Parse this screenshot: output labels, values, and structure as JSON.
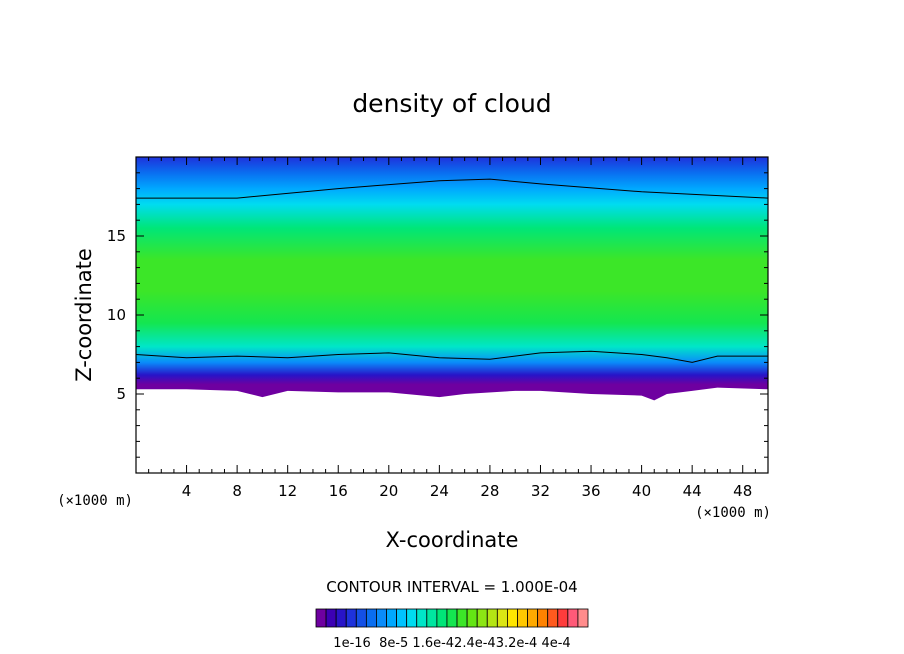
{
  "chart_data": {
    "type": "heatmap",
    "title": "density of cloud",
    "xlabel": "X-coordinate",
    "ylabel": "Z-coordinate",
    "x_unit": "(×1000 m)",
    "xlim": [
      0,
      50
    ],
    "ylim": [
      0,
      20
    ],
    "x_ticks": [
      4,
      8,
      12,
      16,
      20,
      24,
      28,
      32,
      36,
      40,
      44,
      48
    ],
    "y_ticks": [
      5,
      10,
      15
    ],
    "grid": false,
    "contour_interval_text": "CONTOUR INTERVAL = 1.000E-04",
    "colorbar": {
      "tick_labels": [
        "1e-16",
        "8e-5",
        "1.6e-4",
        "2.4e-4",
        "3.2e-4",
        "4e-4"
      ],
      "tick_text": "1e-16  8e-5 1.6e-42.4e-43.2e-4 4e-4",
      "min": 0,
      "max": 0.0004,
      "colors": [
        "#6e00a0",
        "#3c00b4",
        "#2814c8",
        "#1e32dc",
        "#1450e6",
        "#0a6ef0",
        "#0a8cfa",
        "#00a8ff",
        "#00c3ff",
        "#00dcf0",
        "#00e6c8",
        "#00e6a0",
        "#00e678",
        "#14e650",
        "#3ce628",
        "#64e614",
        "#8ce614",
        "#b4e614",
        "#dce614",
        "#ffe600",
        "#ffc800",
        "#ffaa00",
        "#ff8200",
        "#ff5a1e",
        "#ff3c3c",
        "#ff5a78",
        "#ff8c8c"
      ]
    },
    "cloud_profile": {
      "z": [
        5.6,
        6.2,
        7.0,
        8.0,
        9.5,
        11.5,
        13.5,
        15.5,
        17.0,
        18.0,
        19.0,
        20.0
      ],
      "density": [
        0.0,
        4e-05,
        0.0001,
        0.00015,
        0.0002,
        0.00022,
        0.00021,
        0.00018,
        0.00014,
        0.00011,
        8e-05,
        5e-05
      ]
    },
    "contour_lines": [
      {
        "name": "upper",
        "x": [
          0,
          8,
          16,
          24,
          28,
          32,
          40,
          50
        ],
        "z": [
          17.4,
          17.4,
          18.0,
          18.5,
          18.6,
          18.3,
          17.8,
          17.4
        ]
      },
      {
        "name": "lower",
        "x": [
          0,
          4,
          8,
          12,
          16,
          20,
          24,
          28,
          32,
          36,
          40,
          42,
          44,
          46,
          50
        ],
        "z": [
          7.5,
          7.3,
          7.4,
          7.3,
          7.5,
          7.6,
          7.3,
          7.2,
          7.6,
          7.7,
          7.5,
          7.3,
          7.0,
          7.4,
          7.4
        ]
      }
    ],
    "cloud_base": {
      "x": [
        0,
        4,
        8,
        9,
        10,
        12,
        16,
        20,
        24,
        26,
        30,
        32,
        36,
        40,
        41,
        42,
        44,
        46,
        50
      ],
      "z": [
        5.3,
        5.3,
        5.2,
        5.0,
        4.8,
        5.2,
        5.1,
        5.1,
        4.8,
        5.0,
        5.2,
        5.2,
        5.0,
        4.9,
        4.6,
        5.0,
        5.2,
        5.4,
        5.3
      ]
    }
  }
}
